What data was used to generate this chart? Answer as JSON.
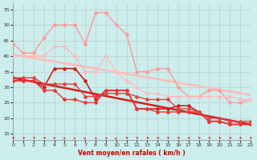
{
  "xlabel": "Vent moyen/en rafales ( km/h )",
  "xlim": [
    0,
    23
  ],
  "ylim": [
    13,
    57
  ],
  "yticks": [
    15,
    20,
    25,
    30,
    35,
    40,
    45,
    50,
    55
  ],
  "xticks": [
    0,
    1,
    2,
    3,
    4,
    5,
    6,
    7,
    8,
    9,
    10,
    11,
    12,
    13,
    14,
    15,
    16,
    17,
    18,
    19,
    20,
    21,
    22,
    23
  ],
  "bg_color": "#cceeed",
  "grid_color": "#bbbbbb",
  "series": [
    {
      "x": [
        0,
        1,
        2,
        3,
        4,
        5,
        6,
        7,
        8,
        9,
        10,
        11,
        12,
        13,
        14,
        15,
        16,
        17,
        18,
        19,
        20,
        21,
        22,
        23
      ],
      "y": [
        44,
        41,
        41,
        46,
        50,
        50,
        50,
        44,
        54,
        54,
        50,
        47,
        35,
        35,
        36,
        36,
        30,
        27,
        27,
        29,
        29,
        25,
        25,
        26
      ],
      "color": "#ff9999",
      "lw": 1.0,
      "marker": "D",
      "ms": 2.0
    },
    {
      "x": [
        0,
        1,
        2,
        3,
        4,
        5,
        6,
        7,
        8,
        9,
        10,
        11,
        12,
        13,
        14,
        15,
        16,
        17,
        18,
        19,
        20,
        21,
        22,
        23
      ],
      "y": [
        40,
        40,
        40,
        40,
        43,
        43,
        40,
        35,
        35,
        40,
        35,
        32,
        30,
        28,
        28,
        27,
        27,
        27,
        27,
        27,
        27,
        27,
        26,
        26
      ],
      "color": "#ffbbbb",
      "lw": 1.0,
      "marker": "D",
      "ms": 2.0
    },
    {
      "x": [
        0,
        1,
        2,
        3,
        4,
        5,
        6,
        7,
        8,
        9,
        10,
        11,
        12,
        13,
        14,
        15,
        16,
        17,
        18,
        19,
        20,
        21,
        22,
        23
      ],
      "y": [
        32,
        32,
        32,
        30,
        36,
        36,
        36,
        32,
        26,
        29,
        29,
        29,
        23,
        23,
        23,
        23,
        24,
        24,
        22,
        19,
        19,
        18,
        18,
        18
      ],
      "color": "#cc2222",
      "lw": 1.2,
      "marker": "D",
      "ms": 2.0
    },
    {
      "x": [
        0,
        1,
        2,
        3,
        4,
        5,
        6,
        7,
        8,
        9,
        10,
        11,
        12,
        13,
        14,
        15,
        16,
        17,
        18,
        19,
        20,
        21,
        22,
        23
      ],
      "y": [
        32,
        32,
        32,
        29,
        29,
        26,
        26,
        25,
        25,
        29,
        29,
        29,
        23,
        23,
        22,
        22,
        22,
        22,
        22,
        19,
        19,
        18,
        18,
        18
      ],
      "color": "#ee3333",
      "lw": 1.0,
      "marker": "D",
      "ms": 2.0
    },
    {
      "x": [
        0,
        1,
        2,
        3,
        4,
        5,
        6,
        7,
        8,
        9,
        10,
        11,
        12,
        13,
        14,
        15,
        16,
        17,
        18,
        19,
        20,
        21,
        22,
        23
      ],
      "y": [
        33,
        33,
        33,
        31,
        31,
        31,
        31,
        27,
        27,
        28,
        28,
        28,
        27,
        26,
        26,
        26,
        23,
        23,
        22,
        20,
        20,
        19,
        19,
        19
      ],
      "color": "#dd4444",
      "lw": 1.0,
      "marker": "D",
      "ms": 2.0
    },
    {
      "x": [
        0,
        23
      ],
      "y": [
        40.5,
        27.5
      ],
      "color": "#ffbbbb",
      "lw": 1.8,
      "marker": null,
      "ms": 0,
      "linestyle": "-"
    },
    {
      "x": [
        0,
        23
      ],
      "y": [
        33.0,
        18.0
      ],
      "color": "#cc2222",
      "lw": 1.8,
      "marker": null,
      "ms": 0,
      "linestyle": "-"
    }
  ],
  "wind_directions_deg": [
    45,
    45,
    45,
    45,
    30,
    20,
    20,
    15,
    340,
    340,
    10,
    40,
    40,
    45,
    45,
    45,
    45,
    45,
    45,
    45,
    45,
    45,
    45,
    45
  ]
}
